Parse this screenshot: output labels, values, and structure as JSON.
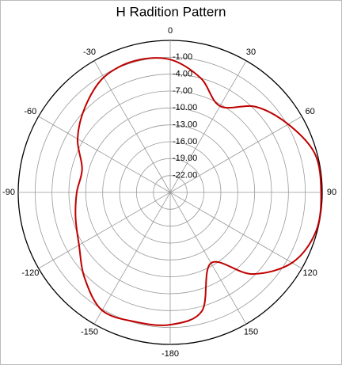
{
  "chart_data": {
    "type": "polar-line",
    "title": "H Radition Pattern",
    "x": [
      -180,
      -165,
      -150,
      -135,
      -120,
      -105,
      -90,
      -75,
      -60,
      -45,
      -30,
      -15,
      0,
      15,
      30,
      45,
      60,
      75,
      90,
      105,
      120,
      135,
      150,
      165
    ],
    "values": [
      -1.5,
      -1.2,
      -0.8,
      -3.5,
      -6.3,
      -7.6,
      -8.4,
      -8.8,
      -6.0,
      -3.6,
      -1.4,
      -0.8,
      -1.4,
      -4.0,
      -7.3,
      -3.5,
      -0.8,
      1.6,
      1.8,
      1.8,
      0.0,
      -4.5,
      -10.5,
      -3.2
    ],
    "color": "#c00000",
    "rlim": [
      -25,
      2
    ],
    "rticks": [
      {
        "value": -1,
        "label": "-1.00"
      },
      {
        "value": -4,
        "label": "-4.00"
      },
      {
        "value": -7,
        "label": "-7.00"
      },
      {
        "value": -10,
        "label": "-10.00"
      },
      {
        "value": -13,
        "label": "-13.00"
      },
      {
        "value": -16,
        "label": "-16.00"
      },
      {
        "value": -19,
        "label": "-19.00"
      },
      {
        "value": -22,
        "label": "-22.00"
      }
    ],
    "thetaticks": [
      0,
      30,
      60,
      90,
      120,
      150,
      -180,
      -150,
      -120,
      -90,
      -60,
      -30
    ],
    "grid": true
  }
}
